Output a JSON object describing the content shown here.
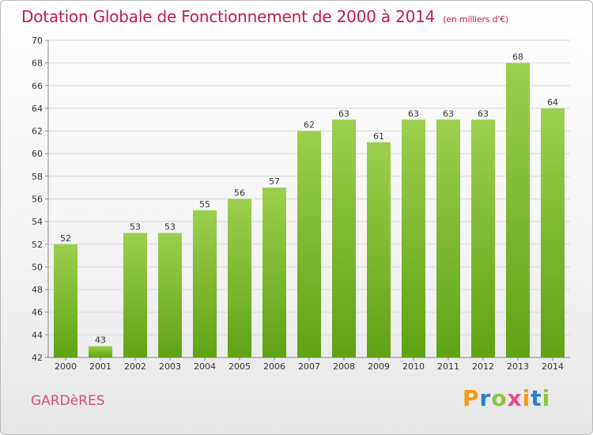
{
  "header": {
    "title": "Dotation Globale de Fonctionnement de 2000 à 2014",
    "subtitle": "(en milliers d'€)"
  },
  "footer": {
    "commune": "GARDèRES",
    "brand_letters": [
      "P",
      "r",
      "o",
      "x",
      "i",
      "t",
      "i"
    ],
    "brand_colors": [
      "#f39c12",
      "#2a7fc9",
      "#8cc63f",
      "#e74c8b",
      "#f39c12",
      "#2a7fc9",
      "#8cc63f"
    ]
  },
  "colors": {
    "bar_top": "#9ccf4e",
    "bar_bottom": "#5fa314",
    "grid": "#d7d7d7",
    "title": "#c2185b"
  },
  "chart_data": {
    "type": "bar",
    "title": "Dotation Globale de Fonctionnement de 2000 à 2014",
    "subtitle": "(en milliers d'€)",
    "xlabel": "",
    "ylabel": "",
    "categories": [
      "2000",
      "2001",
      "2002",
      "2003",
      "2004",
      "2005",
      "2006",
      "2007",
      "2008",
      "2009",
      "2010",
      "2011",
      "2012",
      "2013",
      "2014"
    ],
    "values": [
      52,
      43,
      53,
      53,
      55,
      56,
      57,
      62,
      63,
      61,
      63,
      63,
      63,
      68,
      64
    ],
    "ylim": [
      42,
      70
    ],
    "yticks": [
      42,
      44,
      46,
      48,
      50,
      52,
      54,
      56,
      58,
      60,
      62,
      64,
      66,
      68,
      70
    ],
    "grid": true,
    "data_labels": true
  }
}
